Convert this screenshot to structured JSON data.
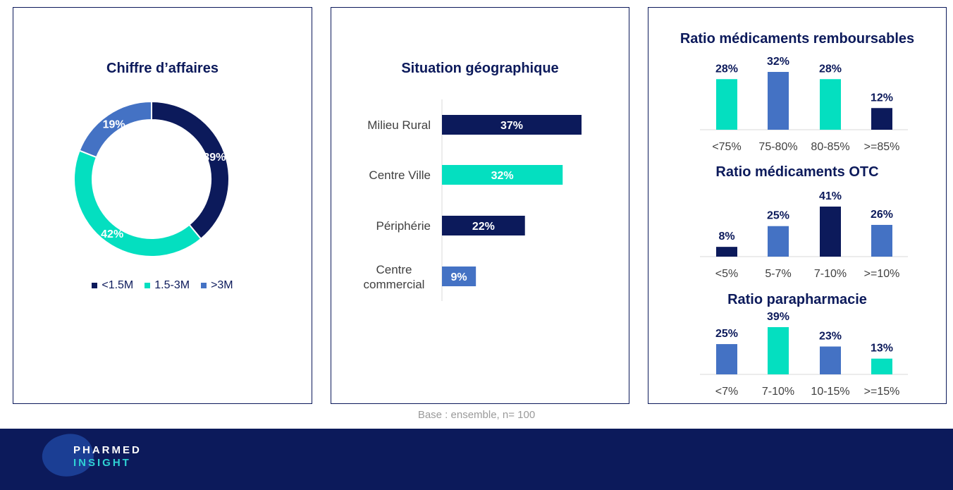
{
  "colors": {
    "navy": "#0c1a5b",
    "teal": "#04dfc0",
    "blue": "#4472c4",
    "muted": "#9a9a9a"
  },
  "base_note": "Base : ensemble, n= 100",
  "footer": {
    "logo_line1": "PHARMED",
    "logo_line2": "INSIGHT"
  },
  "chart_data": [
    {
      "type": "pie",
      "variant": "donut",
      "title": "Chiffre d’affaires",
      "labels": [
        "<1.5M",
        "1.5-3M",
        ">3M"
      ],
      "values": [
        39,
        42,
        19
      ],
      "value_labels": [
        "39%",
        "42%",
        "19%"
      ],
      "colors": [
        "#0c1a5b",
        "#04dfc0",
        "#4472c4"
      ],
      "legend": "bottom"
    },
    {
      "type": "bar",
      "orientation": "horizontal",
      "title": "Situation géographique",
      "categories": [
        "Milieu Rural",
        "Centre Ville",
        "Périphérie",
        "Centre commercial"
      ],
      "values": [
        37,
        32,
        22,
        9
      ],
      "value_labels": [
        "37%",
        "32%",
        "22%",
        "9%"
      ],
      "colors": [
        "#0c1a5b",
        "#04dfc0",
        "#0c1a5b",
        "#4472c4"
      ],
      "xlim": [
        0,
        40
      ]
    },
    {
      "type": "bar",
      "title": "Ratio médicaments remboursables",
      "categories": [
        "<75%",
        "75-80%",
        "80-85%",
        ">=85%"
      ],
      "values": [
        28,
        32,
        28,
        12
      ],
      "value_labels": [
        "28%",
        "32%",
        "28%",
        "12%"
      ],
      "colors": [
        "#04dfc0",
        "#4472c4",
        "#04dfc0",
        "#0c1a5b"
      ],
      "ylim": [
        0,
        32
      ]
    },
    {
      "type": "bar",
      "title": "Ratio médicaments OTC",
      "categories": [
        "<5%",
        "5-7%",
        "7-10%",
        ">=10%"
      ],
      "values": [
        8,
        25,
        41,
        26
      ],
      "value_labels": [
        "8%",
        "25%",
        "41%",
        "26%"
      ],
      "colors": [
        "#0c1a5b",
        "#4472c4",
        "#0c1a5b",
        "#4472c4"
      ],
      "ylim": [
        0,
        41
      ]
    },
    {
      "type": "bar",
      "title": "Ratio parapharmacie",
      "categories": [
        "<7%",
        "7-10%",
        "10-15%",
        ">=15%"
      ],
      "values": [
        25,
        39,
        23,
        13
      ],
      "value_labels": [
        "25%",
        "39%",
        "23%",
        "13%"
      ],
      "colors": [
        "#4472c4",
        "#04dfc0",
        "#4472c4",
        "#04dfc0"
      ],
      "ylim": [
        0,
        39
      ]
    }
  ]
}
